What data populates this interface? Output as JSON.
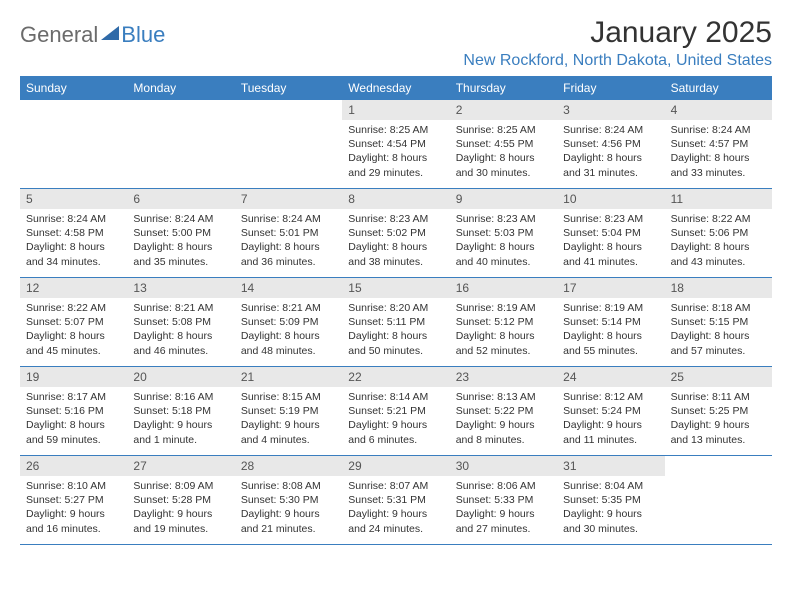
{
  "logo": {
    "word1": "General",
    "word2": "Blue"
  },
  "title": "January 2025",
  "location": "New Rockford, North Dakota, United States",
  "colors": {
    "brand_blue": "#3a7ebf",
    "logo_gray": "#6b6b6b",
    "header_bg": "#3a7ebf",
    "header_text": "#ffffff",
    "daynum_bg": "#e8e8e8",
    "daynum_text": "#555555",
    "body_text": "#333333",
    "page_bg": "#ffffff"
  },
  "day_names": [
    "Sunday",
    "Monday",
    "Tuesday",
    "Wednesday",
    "Thursday",
    "Friday",
    "Saturday"
  ],
  "weeks": [
    [
      null,
      null,
      null,
      {
        "n": "1",
        "sr": "8:25 AM",
        "ss": "4:54 PM",
        "dl": "8 hours and 29 minutes."
      },
      {
        "n": "2",
        "sr": "8:25 AM",
        "ss": "4:55 PM",
        "dl": "8 hours and 30 minutes."
      },
      {
        "n": "3",
        "sr": "8:24 AM",
        "ss": "4:56 PM",
        "dl": "8 hours and 31 minutes."
      },
      {
        "n": "4",
        "sr": "8:24 AM",
        "ss": "4:57 PM",
        "dl": "8 hours and 33 minutes."
      }
    ],
    [
      {
        "n": "5",
        "sr": "8:24 AM",
        "ss": "4:58 PM",
        "dl": "8 hours and 34 minutes."
      },
      {
        "n": "6",
        "sr": "8:24 AM",
        "ss": "5:00 PM",
        "dl": "8 hours and 35 minutes."
      },
      {
        "n": "7",
        "sr": "8:24 AM",
        "ss": "5:01 PM",
        "dl": "8 hours and 36 minutes."
      },
      {
        "n": "8",
        "sr": "8:23 AM",
        "ss": "5:02 PM",
        "dl": "8 hours and 38 minutes."
      },
      {
        "n": "9",
        "sr": "8:23 AM",
        "ss": "5:03 PM",
        "dl": "8 hours and 40 minutes."
      },
      {
        "n": "10",
        "sr": "8:23 AM",
        "ss": "5:04 PM",
        "dl": "8 hours and 41 minutes."
      },
      {
        "n": "11",
        "sr": "8:22 AM",
        "ss": "5:06 PM",
        "dl": "8 hours and 43 minutes."
      }
    ],
    [
      {
        "n": "12",
        "sr": "8:22 AM",
        "ss": "5:07 PM",
        "dl": "8 hours and 45 minutes."
      },
      {
        "n": "13",
        "sr": "8:21 AM",
        "ss": "5:08 PM",
        "dl": "8 hours and 46 minutes."
      },
      {
        "n": "14",
        "sr": "8:21 AM",
        "ss": "5:09 PM",
        "dl": "8 hours and 48 minutes."
      },
      {
        "n": "15",
        "sr": "8:20 AM",
        "ss": "5:11 PM",
        "dl": "8 hours and 50 minutes."
      },
      {
        "n": "16",
        "sr": "8:19 AM",
        "ss": "5:12 PM",
        "dl": "8 hours and 52 minutes."
      },
      {
        "n": "17",
        "sr": "8:19 AM",
        "ss": "5:14 PM",
        "dl": "8 hours and 55 minutes."
      },
      {
        "n": "18",
        "sr": "8:18 AM",
        "ss": "5:15 PM",
        "dl": "8 hours and 57 minutes."
      }
    ],
    [
      {
        "n": "19",
        "sr": "8:17 AM",
        "ss": "5:16 PM",
        "dl": "8 hours and 59 minutes."
      },
      {
        "n": "20",
        "sr": "8:16 AM",
        "ss": "5:18 PM",
        "dl": "9 hours and 1 minute."
      },
      {
        "n": "21",
        "sr": "8:15 AM",
        "ss": "5:19 PM",
        "dl": "9 hours and 4 minutes."
      },
      {
        "n": "22",
        "sr": "8:14 AM",
        "ss": "5:21 PM",
        "dl": "9 hours and 6 minutes."
      },
      {
        "n": "23",
        "sr": "8:13 AM",
        "ss": "5:22 PM",
        "dl": "9 hours and 8 minutes."
      },
      {
        "n": "24",
        "sr": "8:12 AM",
        "ss": "5:24 PM",
        "dl": "9 hours and 11 minutes."
      },
      {
        "n": "25",
        "sr": "8:11 AM",
        "ss": "5:25 PM",
        "dl": "9 hours and 13 minutes."
      }
    ],
    [
      {
        "n": "26",
        "sr": "8:10 AM",
        "ss": "5:27 PM",
        "dl": "9 hours and 16 minutes."
      },
      {
        "n": "27",
        "sr": "8:09 AM",
        "ss": "5:28 PM",
        "dl": "9 hours and 19 minutes."
      },
      {
        "n": "28",
        "sr": "8:08 AM",
        "ss": "5:30 PM",
        "dl": "9 hours and 21 minutes."
      },
      {
        "n": "29",
        "sr": "8:07 AM",
        "ss": "5:31 PM",
        "dl": "9 hours and 24 minutes."
      },
      {
        "n": "30",
        "sr": "8:06 AM",
        "ss": "5:33 PM",
        "dl": "9 hours and 27 minutes."
      },
      {
        "n": "31",
        "sr": "8:04 AM",
        "ss": "5:35 PM",
        "dl": "9 hours and 30 minutes."
      },
      null
    ]
  ],
  "labels": {
    "sunrise": "Sunrise:",
    "sunset": "Sunset:",
    "daylight": "Daylight:"
  }
}
